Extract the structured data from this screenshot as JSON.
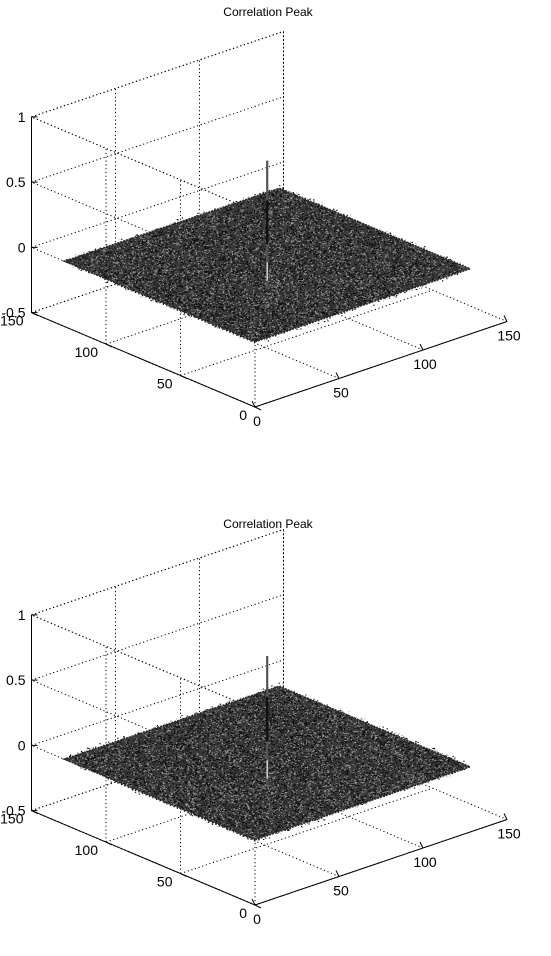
{
  "chart_data": [
    {
      "type": "surface",
      "title": "Correlation Peak",
      "xlabel": "",
      "ylabel": "",
      "zlabel": "",
      "xlim": [
        0,
        150
      ],
      "ylim": [
        0,
        150
      ],
      "zlim": [
        -0.5,
        1
      ],
      "x_ticks": [
        "0",
        "50",
        "100",
        "150"
      ],
      "y_ticks": [
        "0",
        "50",
        "100",
        "150"
      ],
      "z_ticks": [
        "-0.5",
        "0",
        "0.5",
        "1"
      ],
      "grid": true,
      "surface_extent": {
        "x": [
          0,
          128
        ],
        "y": [
          0,
          128
        ]
      },
      "noise_floor": 0,
      "peak": {
        "x": 64,
        "y": 64,
        "value": 0.8
      },
      "color": "#1a1a1a"
    },
    {
      "type": "surface",
      "title": "Correlation Peak",
      "xlabel": "",
      "ylabel": "",
      "zlabel": "",
      "xlim": [
        0,
        150
      ],
      "ylim": [
        0,
        150
      ],
      "zlim": [
        -0.5,
        1
      ],
      "x_ticks": [
        "0",
        "50",
        "100",
        "150"
      ],
      "y_ticks": [
        "0",
        "50",
        "100",
        "150"
      ],
      "z_ticks": [
        "-0.5",
        "0",
        "0.5",
        "1"
      ],
      "grid": true,
      "surface_extent": {
        "x": [
          0,
          128
        ],
        "y": [
          0,
          128
        ]
      },
      "noise_floor": 0,
      "peak": {
        "x": 64,
        "y": 64,
        "value": 0.82
      },
      "color": "#1a1a1a"
    }
  ]
}
